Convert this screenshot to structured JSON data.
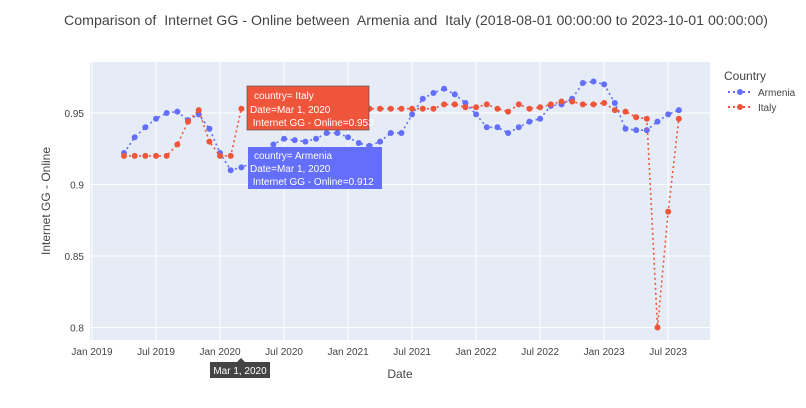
{
  "chart_data": {
    "type": "line",
    "title": "Comparison of  Internet GG - Online between  Armenia and  Italy (2018-08-01 00:00:00 to 2023-10-01 00:00:00)",
    "xlabel": "Date",
    "ylabel": "Internet GG - Online",
    "x_ticks": [
      "Jan 2019",
      "Jul 2019",
      "Jan 2020",
      "Jul 2020",
      "Jan 2021",
      "Jul 2021",
      "Jan 2022",
      "Jul 2022",
      "Jan 2023",
      "Jul 2023"
    ],
    "y_ticks": [
      "0.8",
      "0.85",
      "0.9",
      "0.95"
    ],
    "ylim": [
      0.79,
      0.98
    ],
    "xlim": [
      "2018-12-01",
      "2023-12-01"
    ],
    "grid": true,
    "legend": {
      "title": "Country",
      "placement": "right"
    },
    "x": [
      "2019-04",
      "2019-05",
      "2019-06",
      "2019-07",
      "2019-08",
      "2019-09",
      "2019-10",
      "2019-11",
      "2019-12",
      "2020-01",
      "2020-02",
      "2020-03",
      "2020-04",
      "2020-05",
      "2020-06",
      "2020-07",
      "2020-08",
      "2020-09",
      "2020-10",
      "2020-11",
      "2020-12",
      "2021-01",
      "2021-02",
      "2021-03",
      "2021-04",
      "2021-05",
      "2021-06",
      "2021-07",
      "2021-08",
      "2021-09",
      "2021-10",
      "2021-11",
      "2021-12",
      "2022-01",
      "2022-02",
      "2022-03",
      "2022-04",
      "2022-05",
      "2022-06",
      "2022-07",
      "2022-08",
      "2022-09",
      "2022-10",
      "2022-11",
      "2022-12",
      "2023-01",
      "2023-02",
      "2023-03",
      "2023-04",
      "2023-05",
      "2023-06",
      "2023-07",
      "2023-08"
    ],
    "series": [
      {
        "name": "Armenia",
        "color": "#636efa",
        "values": [
          0.922,
          0.933,
          0.94,
          0.946,
          0.95,
          0.951,
          0.945,
          0.949,
          0.939,
          0.922,
          0.91,
          0.912,
          0.915,
          0.922,
          0.928,
          0.932,
          0.931,
          0.93,
          0.932,
          0.936,
          0.936,
          0.933,
          0.929,
          0.927,
          0.93,
          0.936,
          0.936,
          0.949,
          0.96,
          0.964,
          0.967,
          0.963,
          0.957,
          0.949,
          0.94,
          0.94,
          0.936,
          0.94,
          0.944,
          0.946,
          0.955,
          0.956,
          0.96,
          0.971,
          0.972,
          0.97,
          0.957,
          0.939,
          0.938,
          0.938,
          0.944,
          0.949,
          0.952
        ]
      },
      {
        "name": "Italy",
        "color": "#ef553b",
        "values": [
          0.92,
          0.92,
          0.92,
          0.92,
          0.92,
          0.928,
          0.944,
          0.952,
          0.93,
          0.92,
          0.92,
          0.953,
          0.953,
          0.953,
          0.953,
          0.953,
          0.953,
          0.953,
          0.953,
          0.953,
          0.953,
          0.953,
          0.953,
          0.953,
          0.953,
          0.953,
          0.953,
          0.953,
          0.953,
          0.953,
          0.956,
          0.956,
          0.954,
          0.954,
          0.956,
          0.953,
          0.951,
          0.956,
          0.953,
          0.954,
          0.956,
          0.958,
          0.958,
          0.956,
          0.956,
          0.957,
          0.952,
          0.951,
          0.947,
          0.946,
          0.8,
          0.881,
          0.946
        ]
      }
    ],
    "hover": {
      "x_label": "Mar 1, 2020",
      "index": 11,
      "italy": [
        "country= Italy",
        "Date=Mar 1, 2020",
        " Internet GG - Online=0.953"
      ],
      "armenia": [
        "country= Armenia",
        "Date=Mar 1, 2020",
        " Internet GG - Online=0.912"
      ]
    }
  }
}
